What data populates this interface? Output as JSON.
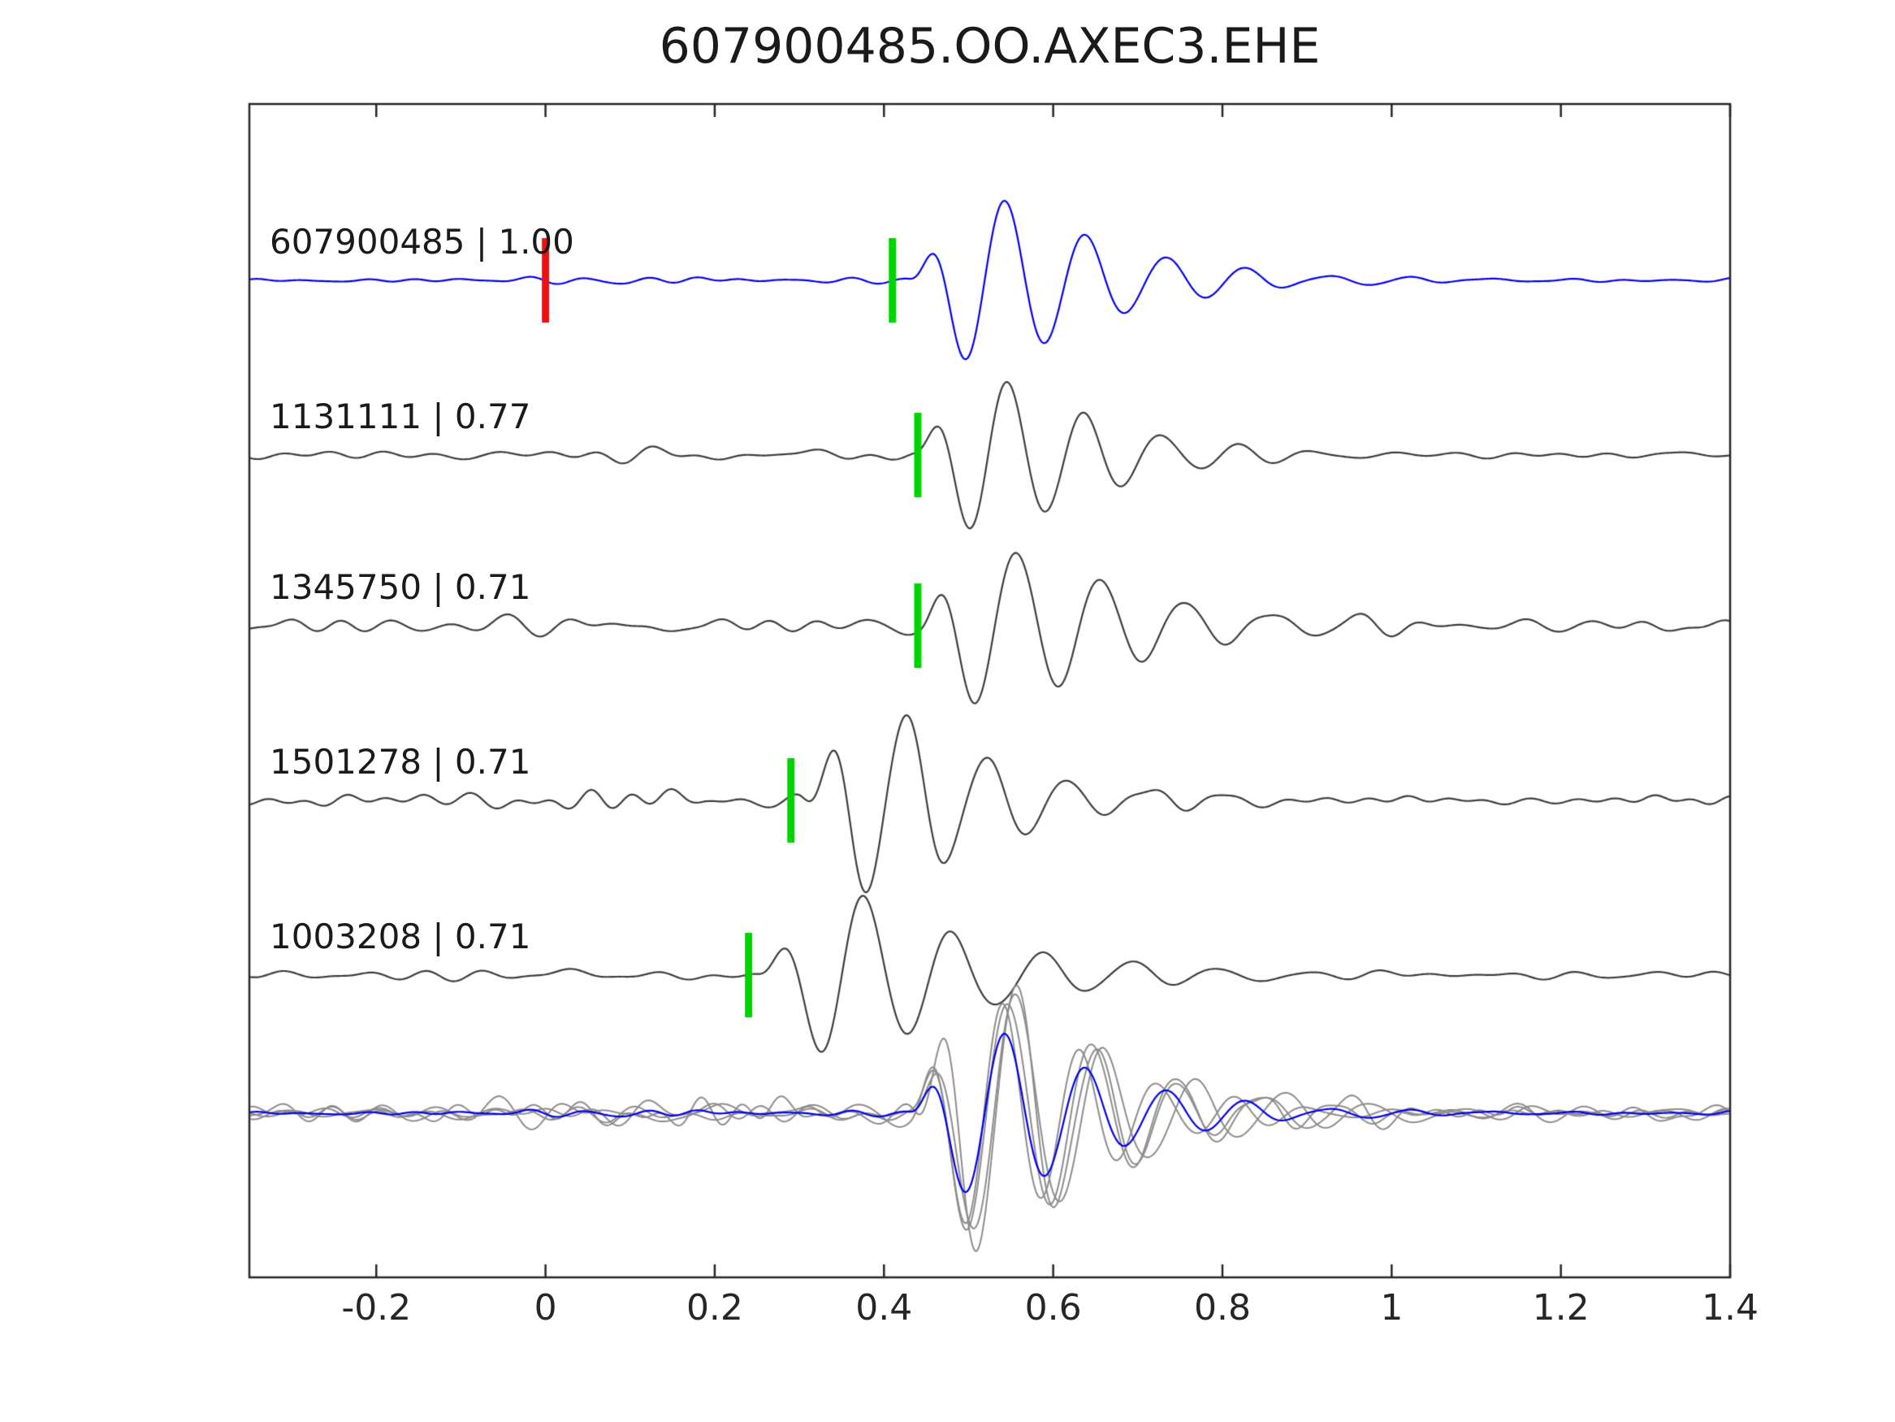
{
  "chart_data": {
    "type": "line",
    "title": "607900485.OO.AXEC3.EHE",
    "xlim": [
      -0.35,
      1.4
    ],
    "xticks": [
      -0.2,
      0,
      0.2,
      0.4,
      0.6,
      0.8,
      1.0,
      1.2,
      1.4
    ],
    "xtick_labels": [
      "-0.2",
      "0",
      "0.2",
      "0.4",
      "0.6",
      "0.8",
      "1",
      "1.2",
      "1.4"
    ],
    "grid": false,
    "legend": false,
    "colors": {
      "axis": "#262626",
      "text": "#1a1a1a",
      "template_trace": "#0000ee",
      "detection_trace": "#3c3c3c",
      "pick_marker": "#00d400",
      "origin_marker": "#ee1111",
      "overlay_gray": "#8c8c8c"
    },
    "traces": [
      {
        "id": "607900485",
        "correlation": 1.0,
        "label": "607900485 | 1.00",
        "color": "#0000ee",
        "pick_time": 0.41,
        "origin_time": 0.0,
        "synth": {
          "seed": 11,
          "noise_amp": 6,
          "amp": 105,
          "freq": 10.5,
          "decay": 0.13,
          "onset": 0.43,
          "phase": 0.4
        }
      },
      {
        "id": "1131111",
        "correlation": 0.77,
        "label": "1131111 | 0.77",
        "color": "#3c3c3c",
        "pick_time": 0.44,
        "synth": {
          "seed": 22,
          "noise_amp": 12,
          "amp": 95,
          "freq": 11.0,
          "decay": 0.12,
          "onset": 0.435,
          "phase": 0.2
        }
      },
      {
        "id": "1345750",
        "correlation": 0.71,
        "label": "1345750 | 0.71",
        "color": "#3c3c3c",
        "pick_time": 0.44,
        "synth": {
          "seed": 33,
          "noise_amp": 20,
          "amp": 100,
          "freq": 10.0,
          "decay": 0.15,
          "onset": 0.44,
          "phase": 0.5
        }
      },
      {
        "id": "1501278",
        "correlation": 0.71,
        "label": "1501278 | 0.71",
        "color": "#3c3c3c",
        "pick_time": 0.29,
        "synth": {
          "seed": 44,
          "noise_amp": 16,
          "amp": 110,
          "freq": 10.5,
          "decay": 0.13,
          "onset": 0.3,
          "phase": -0.5
        }
      },
      {
        "id": "1003208",
        "correlation": 0.71,
        "label": "1003208 | 0.71",
        "color": "#3c3c3c",
        "pick_time": 0.24,
        "synth": {
          "seed": 55,
          "noise_amp": 12,
          "amp": 95,
          "freq": 9.5,
          "decay": 0.16,
          "onset": 0.25,
          "phase": 0.3
        }
      }
    ],
    "overlay": {
      "align_time": 0.43,
      "gray_color": "#8c8c8c",
      "blue_color": "#0000ee",
      "gray_scale": 1.5,
      "blue_scale": 1.0
    }
  }
}
